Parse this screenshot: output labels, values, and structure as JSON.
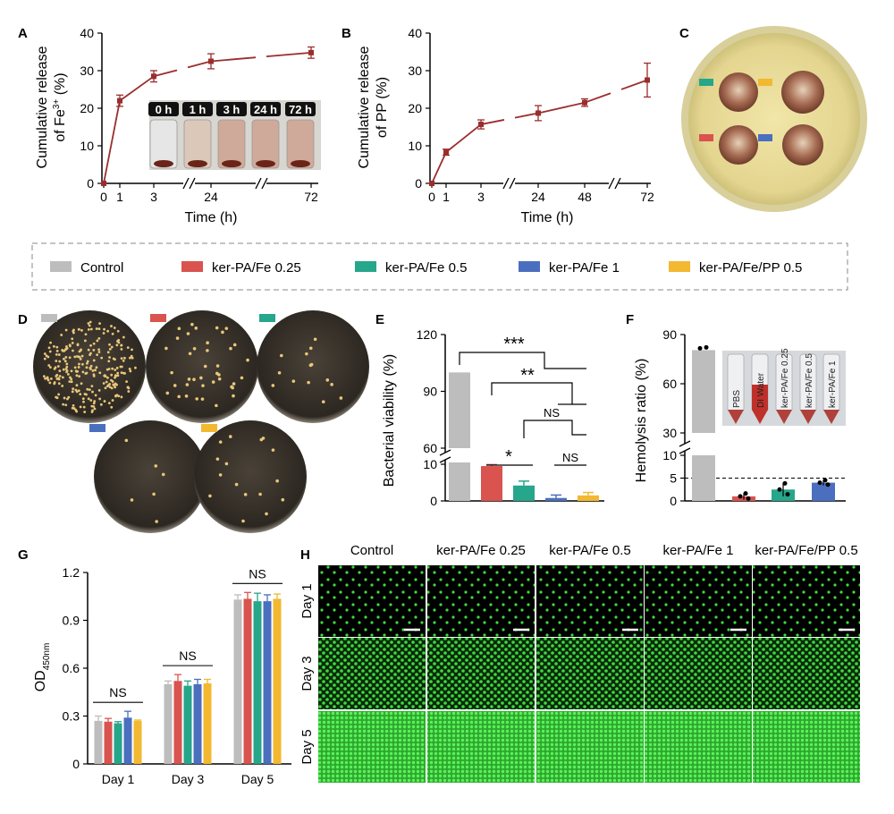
{
  "panels": {
    "A": "A",
    "B": "B",
    "C": "C",
    "D": "D",
    "E": "E",
    "F": "F",
    "G": "G",
    "H": "H"
  },
  "colors": {
    "control": "#bdbdbd",
    "fe025": "#d9534f",
    "fe05": "#26a68a",
    "fe1": "#4a6fbf",
    "fepp": "#f2b830",
    "release": "#9b2d2d",
    "green": "#3fd93f",
    "dish": "#3a342c",
    "agar": "#e8dc9a"
  },
  "legend": [
    "Control",
    "ker-PA/Fe 0.25",
    "ker-PA/Fe 0.5",
    "ker-PA/Fe 1",
    "ker-PA/Fe/PP 0.5"
  ],
  "inset_A": [
    "0 h",
    "1 h",
    "3 h",
    "24 h",
    "72 h"
  ],
  "inset_F": [
    "PBS",
    "DI Water",
    "ker-PA/Fe 0.25",
    "ker-PA/Fe 0.5",
    "ker-PA/Fe 1"
  ],
  "H": {
    "columns": [
      "Control",
      "ker-PA/Fe 0.25",
      "ker-PA/Fe 0.5",
      "ker-PA/Fe 1",
      "ker-PA/Fe/PP 0.5"
    ],
    "rows": [
      "Day 1",
      "Day 3",
      "Day 5"
    ]
  },
  "chart_data": [
    {
      "id": "A",
      "type": "line",
      "ylabel_line1": "Cumulative release",
      "ylabel_line2": "of Fe",
      "ylabel_sup": "3+",
      "ylabel_unit": "(%)",
      "xlabel": "Time (h)",
      "x": [
        0,
        1,
        3,
        24,
        72
      ],
      "y": [
        0,
        22,
        28.5,
        32.5,
        34.8
      ],
      "err": [
        0,
        1.5,
        1.5,
        2,
        1.5
      ],
      "xticks": [
        "0",
        "1",
        "3",
        "24",
        "72"
      ],
      "ylim": [
        0,
        40
      ],
      "yticks": [
        0,
        10,
        20,
        30,
        40
      ]
    },
    {
      "id": "B",
      "type": "line",
      "ylabel_line1": "Cumulative release",
      "ylabel_line2": "of PP  (%)",
      "xlabel": "Time (h)",
      "x": [
        0,
        1,
        3,
        24,
        48,
        72
      ],
      "y": [
        0,
        8.3,
        15.7,
        18.7,
        21.5,
        27.5
      ],
      "err": [
        0,
        0.8,
        1.2,
        2,
        1,
        4.5
      ],
      "xticks": [
        "0",
        "1",
        "3",
        "24",
        "48",
        "72"
      ],
      "ylim": [
        0,
        40
      ],
      "yticks": [
        0,
        10,
        20,
        30,
        40
      ]
    },
    {
      "id": "E",
      "type": "bar",
      "ylabel": "Bacterial viability (%)",
      "values": [
        100,
        9.5,
        4.2,
        0.8,
        1.5
      ],
      "err": [
        0,
        0.4,
        1.2,
        0.8,
        0.8
      ],
      "yticks": [
        "0",
        "10",
        "60",
        "90",
        "120"
      ],
      "sig": [
        "***",
        "**",
        "NS",
        "*",
        "NS"
      ]
    },
    {
      "id": "F",
      "type": "bar",
      "ylabel": "Hemolysis ratio (%)",
      "values": [
        80.5,
        1,
        2.5,
        4
      ],
      "err": [
        0,
        0.7,
        1.5,
        0.6
      ],
      "yticks": [
        "0",
        "5",
        "10",
        "30",
        "60",
        "90"
      ]
    },
    {
      "id": "G",
      "type": "bar",
      "ylabel": "OD",
      "ylabel_sub": "450nm",
      "categories": [
        "Day 1",
        "Day 3",
        "Day 5"
      ],
      "series": [
        {
          "name": "Control",
          "values": [
            0.27,
            0.5,
            1.03
          ],
          "err": [
            0.03,
            0.02,
            0.03
          ]
        },
        {
          "name": "ker-PA/Fe 0.25",
          "values": [
            0.265,
            0.52,
            1.035
          ],
          "err": [
            0.02,
            0.04,
            0.04
          ]
        },
        {
          "name": "ker-PA/Fe 0.5",
          "values": [
            0.255,
            0.49,
            1.02
          ],
          "err": [
            0.01,
            0.03,
            0.05
          ]
        },
        {
          "name": "ker-PA/Fe 1",
          "values": [
            0.29,
            0.5,
            1.02
          ],
          "err": [
            0.04,
            0.03,
            0.04
          ]
        },
        {
          "name": "ker-PA/Fe/PP 0.5",
          "values": [
            0.27,
            0.505,
            1.035
          ],
          "err": [
            0.005,
            0.025,
            0.03
          ]
        }
      ],
      "ylim": [
        0,
        1.2
      ],
      "yticks": [
        "0",
        "0.3",
        "0.6",
        "0.9",
        "1.2"
      ],
      "sig": [
        "NS",
        "NS",
        "NS"
      ]
    }
  ]
}
